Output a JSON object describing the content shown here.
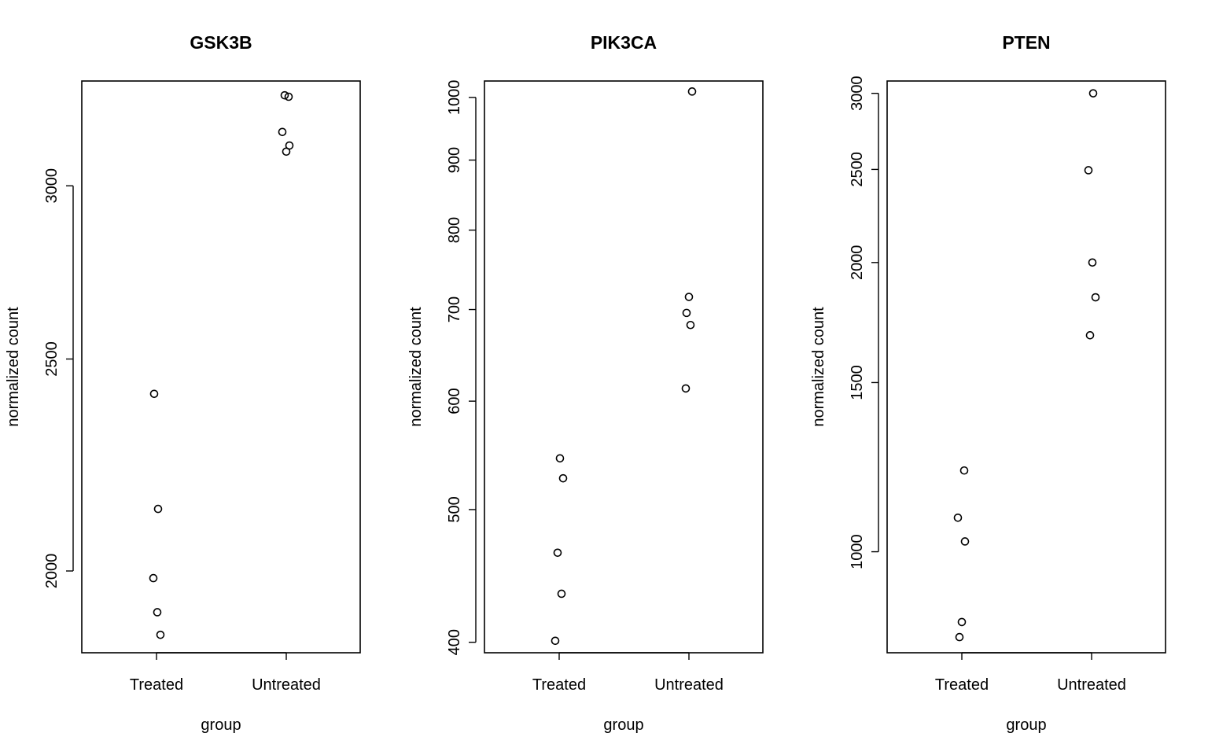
{
  "figure": {
    "background": "#ffffff",
    "foreground": "#000000"
  },
  "chart_data": [
    {
      "type": "scatter",
      "title": "GSK3B",
      "xlabel": "group",
      "ylabel": "normalized count",
      "categories": [
        "Treated",
        "Untreated"
      ],
      "y_scale": "log",
      "ylim": [
        1835,
        3350
      ],
      "y_ticks": [
        2000,
        2500,
        3000
      ],
      "y_tick_labels": [
        "2000",
        "2500",
        "3000"
      ],
      "grid": false,
      "legend": "none",
      "points": [
        {
          "group": "Treated",
          "y": 2410
        },
        {
          "group": "Treated",
          "y": 2135
        },
        {
          "group": "Treated",
          "y": 1985
        },
        {
          "group": "Treated",
          "y": 1915
        },
        {
          "group": "Treated",
          "y": 1870
        },
        {
          "group": "Untreated",
          "y": 3300
        },
        {
          "group": "Untreated",
          "y": 3295
        },
        {
          "group": "Untreated",
          "y": 3175
        },
        {
          "group": "Untreated",
          "y": 3130
        },
        {
          "group": "Untreated",
          "y": 3110
        }
      ]
    },
    {
      "type": "scatter",
      "title": "PIK3CA",
      "xlabel": "group",
      "ylabel": "normalized count",
      "categories": [
        "Treated",
        "Untreated"
      ],
      "y_scale": "log",
      "ylim": [
        393,
        1028
      ],
      "y_ticks": [
        400,
        500,
        600,
        700,
        800,
        900,
        1000
      ],
      "y_tick_labels": [
        "400",
        "500",
        "600",
        "700",
        "800",
        "900",
        "1000"
      ],
      "grid": false,
      "legend": "none",
      "points": [
        {
          "group": "Treated",
          "y": 545
        },
        {
          "group": "Treated",
          "y": 527
        },
        {
          "group": "Treated",
          "y": 465
        },
        {
          "group": "Treated",
          "y": 434
        },
        {
          "group": "Treated",
          "y": 401
        },
        {
          "group": "Untreated",
          "y": 1010
        },
        {
          "group": "Untreated",
          "y": 715
        },
        {
          "group": "Untreated",
          "y": 696
        },
        {
          "group": "Untreated",
          "y": 682
        },
        {
          "group": "Untreated",
          "y": 613
        }
      ]
    },
    {
      "type": "scatter",
      "title": "PTEN",
      "xlabel": "group",
      "ylabel": "normalized count",
      "categories": [
        "Treated",
        "Untreated"
      ],
      "y_scale": "log",
      "ylim": [
        785,
        3090
      ],
      "y_ticks": [
        1000,
        1500,
        2000,
        2500,
        3000
      ],
      "y_tick_labels": [
        "1000",
        "1500",
        "2000",
        "2500",
        "3000"
      ],
      "grid": false,
      "legend": "none",
      "points": [
        {
          "group": "Treated",
          "y": 1215
        },
        {
          "group": "Treated",
          "y": 1085
        },
        {
          "group": "Treated",
          "y": 1025
        },
        {
          "group": "Treated",
          "y": 845
        },
        {
          "group": "Treated",
          "y": 815
        },
        {
          "group": "Untreated",
          "y": 3000
        },
        {
          "group": "Untreated",
          "y": 2495
        },
        {
          "group": "Untreated",
          "y": 2000
        },
        {
          "group": "Untreated",
          "y": 1840
        },
        {
          "group": "Untreated",
          "y": 1680
        }
      ]
    }
  ]
}
